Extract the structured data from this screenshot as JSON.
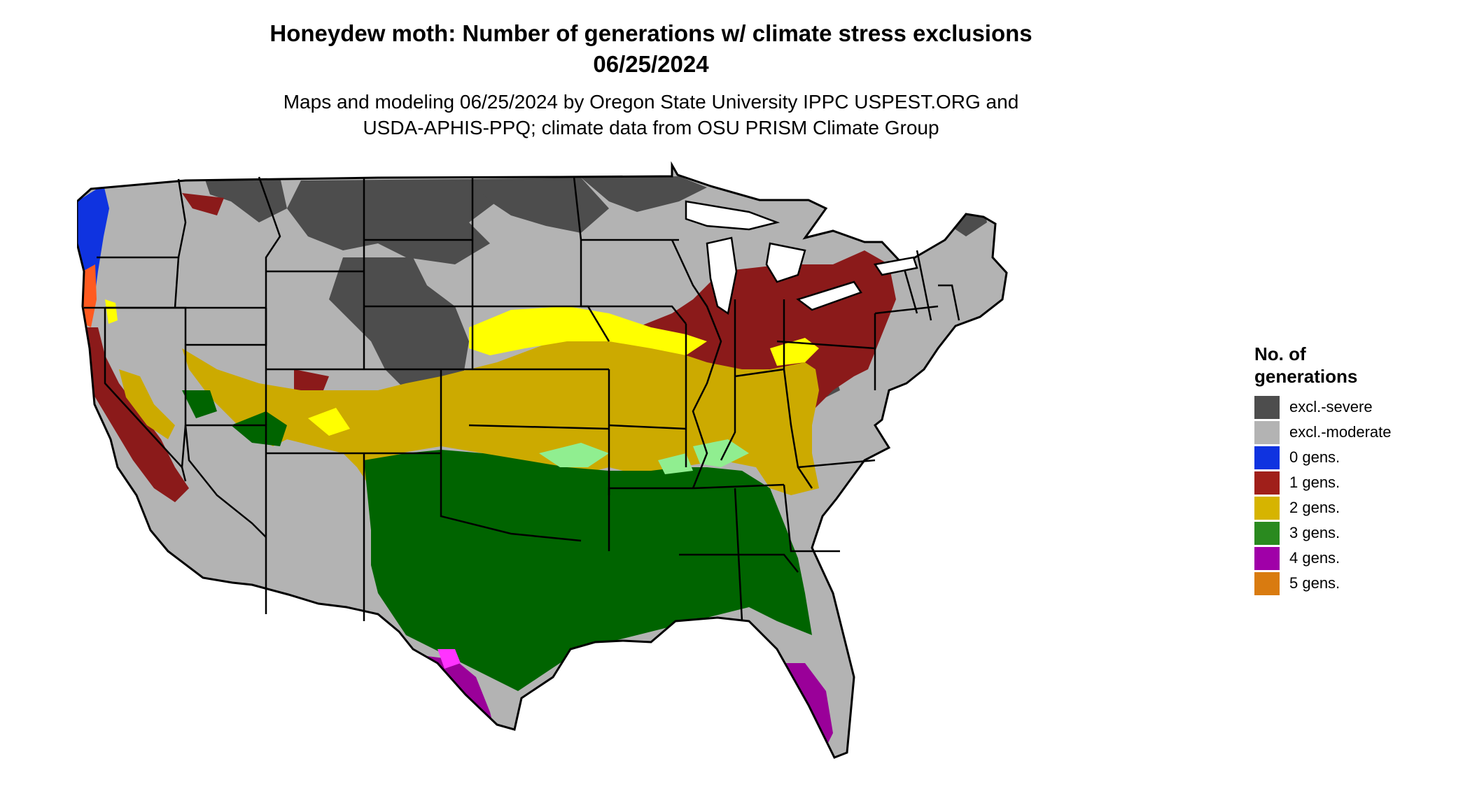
{
  "header": {
    "title_line1": "Honeydew moth: Number of generations w/ climate stress exclusions",
    "title_line2": "06/25/2024",
    "subtitle_line1": "Maps and modeling 06/25/2024 by Oregon State University IPPC USPEST.ORG and",
    "subtitle_line2": "USDA-APHIS-PPQ; climate data from OSU PRISM Climate Group"
  },
  "legend": {
    "title_line1": "No. of",
    "title_line2": "generations",
    "items": [
      {
        "label": "excl.-severe",
        "color": "#4d4d4d"
      },
      {
        "label": "excl.-moderate",
        "color": "#b3b3b3"
      },
      {
        "label": "0 gens.",
        "color": "#0f33e0"
      },
      {
        "label": "1 gens.",
        "color": "#a01f1a"
      },
      {
        "label": "2 gens.",
        "color": "#d6b400"
      },
      {
        "label": "3 gens.",
        "color": "#2a8a1f"
      },
      {
        "label": "4 gens.",
        "color": "#a000a8"
      },
      {
        "label": "5 gens.",
        "color": "#d97b10"
      }
    ]
  },
  "map_colors": {
    "severe": "#4d4d4d",
    "moderate": "#b3b3b3",
    "zero": "#0f33e0",
    "one": "#8b1a1a",
    "two": "#ccaa00",
    "yellow_bright": "#ffff00",
    "three": "#006400",
    "three_light": "#90ee90",
    "four": "#9a0099",
    "four_light": "#ff33ff",
    "orange": "#ff5a1f",
    "boundary": "#000000"
  }
}
